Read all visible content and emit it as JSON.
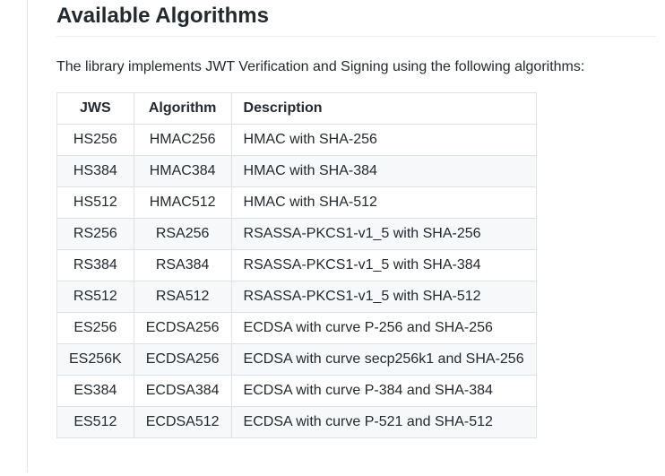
{
  "heading": "Available Algorithms",
  "description": "The library implements JWT Verification and Signing using the following algorithms:",
  "table": {
    "columns": [
      "JWS",
      "Algorithm",
      "Description"
    ],
    "rows": [
      [
        "HS256",
        "HMAC256",
        "HMAC with SHA-256"
      ],
      [
        "HS384",
        "HMAC384",
        "HMAC with SHA-384"
      ],
      [
        "HS512",
        "HMAC512",
        "HMAC with SHA-512"
      ],
      [
        "RS256",
        "RSA256",
        "RSASSA-PKCS1-v1_5 with SHA-256"
      ],
      [
        "RS384",
        "RSA384",
        "RSASSA-PKCS1-v1_5 with SHA-384"
      ],
      [
        "RS512",
        "RSA512",
        "RSASSA-PKCS1-v1_5 with SHA-512"
      ],
      [
        "ES256",
        "ECDSA256",
        "ECDSA with curve P-256 and SHA-256"
      ],
      [
        "ES256K",
        "ECDSA256",
        "ECDSA with curve secp256k1 and SHA-256"
      ],
      [
        "ES384",
        "ECDSA384",
        "ECDSA with curve P-384 and SHA-384"
      ],
      [
        "ES512",
        "ECDSA512",
        "ECDSA with curve P-521 and SHA-512"
      ]
    ]
  }
}
